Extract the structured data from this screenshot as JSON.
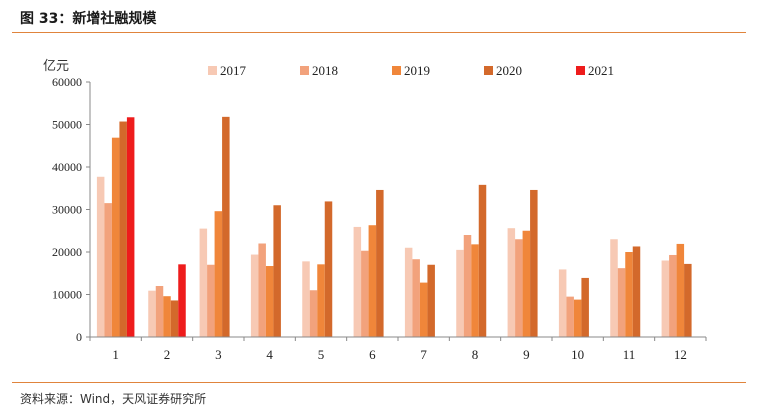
{
  "figure_title": "图 33：新增社融规模",
  "source": "资料来源：Wind，天风证券研究所",
  "chart_data": {
    "type": "bar",
    "title": "",
    "ylabel": "亿元",
    "xlabel": "",
    "ylim": [
      0,
      60000
    ],
    "yticks": [
      0,
      10000,
      20000,
      30000,
      40000,
      50000,
      60000
    ],
    "categories": [
      "1",
      "2",
      "3",
      "4",
      "5",
      "6",
      "7",
      "8",
      "9",
      "10",
      "11",
      "12"
    ],
    "legend_position": "top",
    "series": [
      {
        "name": "2017",
        "color": "#f7c9b4",
        "values": [
          37700,
          10900,
          25500,
          19400,
          17800,
          25900,
          21000,
          20500,
          25600,
          15900,
          23000,
          18000
        ]
      },
      {
        "name": "2018",
        "color": "#f2a27c",
        "values": [
          31500,
          12000,
          17000,
          22000,
          11000,
          20300,
          18300,
          24000,
          23000,
          9500,
          16200,
          19300
        ]
      },
      {
        "name": "2019",
        "color": "#f0863a",
        "values": [
          46900,
          9600,
          29600,
          16700,
          17100,
          26300,
          12800,
          21800,
          25000,
          8800,
          20000,
          21900
        ]
      },
      {
        "name": "2020",
        "color": "#d3692b",
        "values": [
          50700,
          8600,
          51800,
          31000,
          31900,
          34600,
          17000,
          35800,
          34600,
          13900,
          21300,
          17200
        ]
      },
      {
        "name": "2021",
        "color": "#ee1c1c",
        "values": [
          51700,
          17100,
          null,
          null,
          null,
          null,
          null,
          null,
          null,
          null,
          null,
          null
        ]
      }
    ]
  }
}
